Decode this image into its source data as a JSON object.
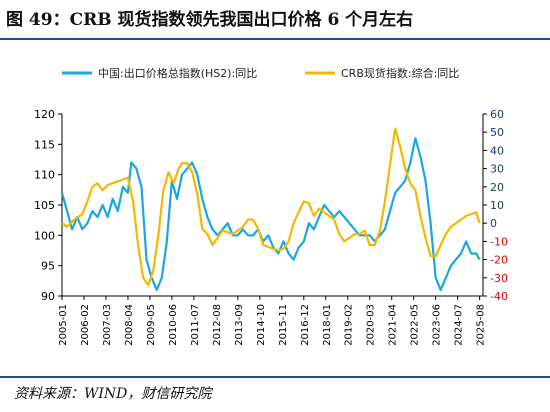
{
  "header": {
    "title": "图 49：CRB 现货指数领先我国出口价格 6 个月左右"
  },
  "footer": {
    "source": "资料来源：WIND，财信研究院"
  },
  "colors": {
    "series_a": "#1aa7e0",
    "series_b": "#f5b800",
    "left_axis": "#000000",
    "right_axis_neg": "#e60000",
    "right_axis_pos": "#1f3a6e"
  },
  "chart_data": {
    "type": "line",
    "legend_position": "top",
    "grid": false,
    "x_ticks": [
      "2005-01",
      "2006-02",
      "2007-03",
      "2008-04",
      "2009-05",
      "2010-06",
      "2011-07",
      "2012-08",
      "2013-09",
      "2014-10",
      "2015-11",
      "2016-12",
      "2018-01",
      "2019-02",
      "2020-03",
      "2021-04",
      "2022-05",
      "2023-06",
      "2024-07",
      "2025-08"
    ],
    "xlim": [
      "2005-01",
      "2025-10"
    ],
    "y_left": {
      "ticks": [
        90,
        95,
        100,
        105,
        110,
        115,
        120
      ],
      "ylim": [
        90,
        120
      ]
    },
    "y_right": {
      "ticks": [
        -40,
        -30,
        -20,
        -10,
        0,
        10,
        20,
        30,
        40,
        50,
        60
      ],
      "ylim": [
        -40,
        60
      ]
    },
    "series": [
      {
        "name": "中国:出口价格总指数(HS2):同比",
        "axis": "left",
        "points": [
          [
            "2005-01",
            107
          ],
          [
            "2005-04",
            104
          ],
          [
            "2005-07",
            101
          ],
          [
            "2005-10",
            103
          ],
          [
            "2006-01",
            101
          ],
          [
            "2006-04",
            102
          ],
          [
            "2006-07",
            104
          ],
          [
            "2006-10",
            103
          ],
          [
            "2007-01",
            105
          ],
          [
            "2007-04",
            103
          ],
          [
            "2007-07",
            106
          ],
          [
            "2007-10",
            104
          ],
          [
            "2008-01",
            108
          ],
          [
            "2008-04",
            107
          ],
          [
            "2008-06",
            112
          ],
          [
            "2008-09",
            111
          ],
          [
            "2008-12",
            108
          ],
          [
            "2009-03",
            96
          ],
          [
            "2009-06",
            93
          ],
          [
            "2009-09",
            91
          ],
          [
            "2009-12",
            93
          ],
          [
            "2010-03",
            99
          ],
          [
            "2010-06",
            109
          ],
          [
            "2010-09",
            106
          ],
          [
            "2010-12",
            110
          ],
          [
            "2011-03",
            111
          ],
          [
            "2011-06",
            112
          ],
          [
            "2011-09",
            110
          ],
          [
            "2011-12",
            106
          ],
          [
            "2012-03",
            103
          ],
          [
            "2012-06",
            101
          ],
          [
            "2012-09",
            100
          ],
          [
            "2012-12",
            101
          ],
          [
            "2013-03",
            102
          ],
          [
            "2013-06",
            100
          ],
          [
            "2013-09",
            100
          ],
          [
            "2013-12",
            101
          ],
          [
            "2014-03",
            100
          ],
          [
            "2014-06",
            100
          ],
          [
            "2014-09",
            101
          ],
          [
            "2014-12",
            99
          ],
          [
            "2015-03",
            100
          ],
          [
            "2015-06",
            98
          ],
          [
            "2015-09",
            97
          ],
          [
            "2015-12",
            99
          ],
          [
            "2016-03",
            97
          ],
          [
            "2016-06",
            96
          ],
          [
            "2016-09",
            98
          ],
          [
            "2016-12",
            99
          ],
          [
            "2017-03",
            102
          ],
          [
            "2017-06",
            101
          ],
          [
            "2017-09",
            103
          ],
          [
            "2017-12",
            105
          ],
          [
            "2018-03",
            104
          ],
          [
            "2018-06",
            103
          ],
          [
            "2018-09",
            104
          ],
          [
            "2018-12",
            103
          ],
          [
            "2019-03",
            102
          ],
          [
            "2019-06",
            101
          ],
          [
            "2019-09",
            100
          ],
          [
            "2019-12",
            100
          ],
          [
            "2020-03",
            100
          ],
          [
            "2020-06",
            99
          ],
          [
            "2020-09",
            100
          ],
          [
            "2020-12",
            101
          ],
          [
            "2021-03",
            104
          ],
          [
            "2021-06",
            107
          ],
          [
            "2021-09",
            108
          ],
          [
            "2021-12",
            109
          ],
          [
            "2022-03",
            112
          ],
          [
            "2022-06",
            116
          ],
          [
            "2022-09",
            113
          ],
          [
            "2022-12",
            109
          ],
          [
            "2023-03",
            102
          ],
          [
            "2023-06",
            93
          ],
          [
            "2023-09",
            91
          ],
          [
            "2023-12",
            93
          ],
          [
            "2024-03",
            95
          ],
          [
            "2024-06",
            96
          ],
          [
            "2024-09",
            97
          ],
          [
            "2024-12",
            99
          ],
          [
            "2025-03",
            97
          ],
          [
            "2025-06",
            97
          ],
          [
            "2025-08",
            96
          ]
        ]
      },
      {
        "name": "CRB现货指数:综合:同比",
        "axis": "right",
        "points": [
          [
            "2005-01",
            0
          ],
          [
            "2005-04",
            -2
          ],
          [
            "2005-07",
            1
          ],
          [
            "2005-10",
            3
          ],
          [
            "2006-01",
            5
          ],
          [
            "2006-04",
            12
          ],
          [
            "2006-07",
            20
          ],
          [
            "2006-10",
            22
          ],
          [
            "2007-01",
            18
          ],
          [
            "2007-04",
            21
          ],
          [
            "2007-07",
            22
          ],
          [
            "2007-10",
            23
          ],
          [
            "2008-01",
            24
          ],
          [
            "2008-04",
            25
          ],
          [
            "2008-07",
            12
          ],
          [
            "2008-10",
            -12
          ],
          [
            "2009-01",
            -30
          ],
          [
            "2009-04",
            -34
          ],
          [
            "2009-07",
            -26
          ],
          [
            "2009-10",
            -6
          ],
          [
            "2010-01",
            18
          ],
          [
            "2010-04",
            28
          ],
          [
            "2010-07",
            22
          ],
          [
            "2010-10",
            30
          ],
          [
            "2010-12",
            33
          ],
          [
            "2011-03",
            33
          ],
          [
            "2011-06",
            28
          ],
          [
            "2011-09",
            16
          ],
          [
            "2011-12",
            -3
          ],
          [
            "2012-03",
            -6
          ],
          [
            "2012-06",
            -12
          ],
          [
            "2012-09",
            -8
          ],
          [
            "2012-12",
            -4
          ],
          [
            "2013-03",
            -5
          ],
          [
            "2013-06",
            -6
          ],
          [
            "2013-09",
            -4
          ],
          [
            "2013-12",
            -2
          ],
          [
            "2014-03",
            2
          ],
          [
            "2014-06",
            2
          ],
          [
            "2014-09",
            -3
          ],
          [
            "2014-12",
            -12
          ],
          [
            "2015-03",
            -13
          ],
          [
            "2015-06",
            -14
          ],
          [
            "2015-09",
            -15
          ],
          [
            "2015-12",
            -14
          ],
          [
            "2016-03",
            -10
          ],
          [
            "2016-06",
            0
          ],
          [
            "2016-09",
            6
          ],
          [
            "2016-12",
            12
          ],
          [
            "2017-03",
            11
          ],
          [
            "2017-06",
            4
          ],
          [
            "2017-09",
            8
          ],
          [
            "2017-12",
            6
          ],
          [
            "2018-03",
            4
          ],
          [
            "2018-06",
            2
          ],
          [
            "2018-09",
            -6
          ],
          [
            "2018-12",
            -10
          ],
          [
            "2019-03",
            -8
          ],
          [
            "2019-06",
            -6
          ],
          [
            "2019-09",
            -6
          ],
          [
            "2019-12",
            -4
          ],
          [
            "2020-03",
            -12
          ],
          [
            "2020-06",
            -12
          ],
          [
            "2020-09",
            -4
          ],
          [
            "2020-12",
            12
          ],
          [
            "2021-03",
            32
          ],
          [
            "2021-06",
            52
          ],
          [
            "2021-09",
            42
          ],
          [
            "2021-12",
            30
          ],
          [
            "2022-03",
            22
          ],
          [
            "2022-06",
            18
          ],
          [
            "2022-09",
            4
          ],
          [
            "2022-12",
            -8
          ],
          [
            "2023-03",
            -18
          ],
          [
            "2023-06",
            -18
          ],
          [
            "2023-09",
            -12
          ],
          [
            "2023-12",
            -6
          ],
          [
            "2024-03",
            -2
          ],
          [
            "2024-06",
            0
          ],
          [
            "2024-09",
            2
          ],
          [
            "2024-12",
            4
          ],
          [
            "2025-03",
            5
          ],
          [
            "2025-06",
            6
          ],
          [
            "2025-08",
            0
          ]
        ]
      }
    ]
  }
}
